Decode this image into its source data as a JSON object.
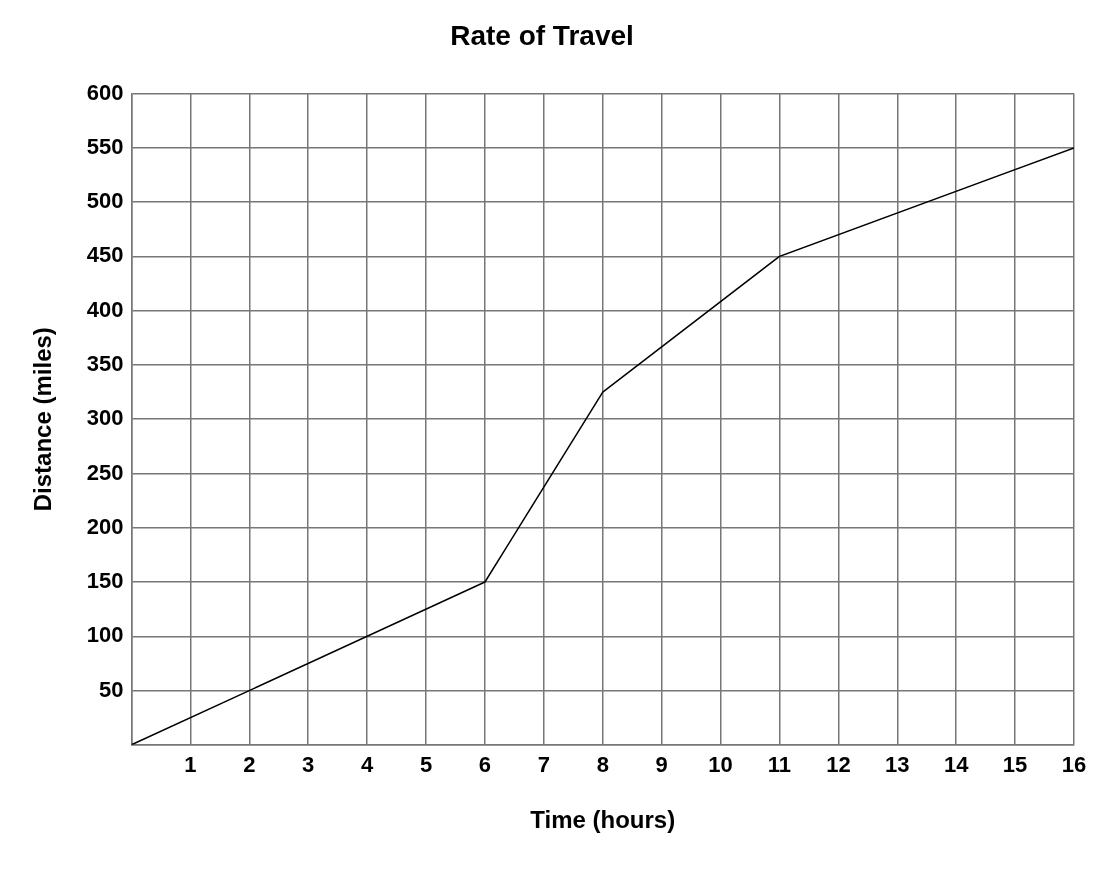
{
  "chart_data": {
    "type": "line",
    "title": "Rate of Travel",
    "xlabel": "Time (hours)",
    "ylabel": "Distance (miles)",
    "x": [
      0,
      6,
      8,
      11,
      16
    ],
    "series": [
      {
        "color": "#000000",
        "values": [
          0,
          150,
          325,
          450,
          550
        ]
      }
    ],
    "xlim": [
      0,
      16
    ],
    "xticks": [
      {
        "value": 0,
        "label": null
      },
      1,
      2,
      3,
      4,
      5,
      6,
      7,
      8,
      9,
      10,
      11,
      12,
      13,
      14,
      15,
      16
    ],
    "ylim": [
      0,
      600
    ],
    "yticks": [
      {
        "value": 0,
        "label": null
      },
      50,
      100,
      150,
      200,
      250,
      300,
      350,
      400,
      450,
      500,
      550,
      600
    ],
    "grid": true,
    "legend": false,
    "marker": "none",
    "line_style": "solid"
  }
}
